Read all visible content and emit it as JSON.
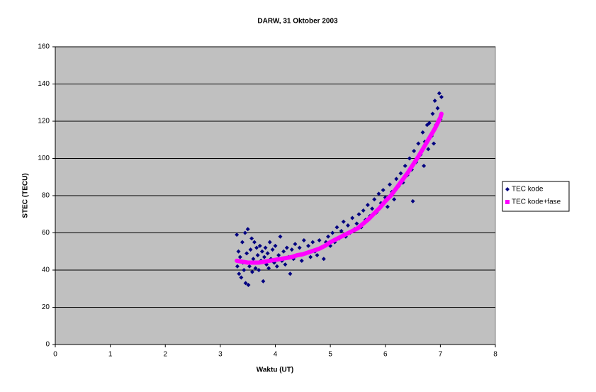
{
  "chart_data": {
    "type": "scatter",
    "title": "DARW, 31 Oktober 2003",
    "x_label": "Waktu (UT)",
    "y_label": "STEC (TECU)",
    "xlim": [
      0,
      8
    ],
    "xticks": [
      0,
      1,
      2,
      3,
      4,
      5,
      6,
      7,
      8
    ],
    "ylim": [
      0,
      160
    ],
    "yticks": [
      0,
      20,
      40,
      60,
      80,
      100,
      120,
      140,
      160
    ],
    "grid": true,
    "legend": "right",
    "background": "#c0c0c0",
    "series": [
      {
        "name": "TEC kode",
        "color": "#000080",
        "marker": "diamond",
        "x": [
          3.3,
          3.31,
          3.33,
          3.34,
          3.36,
          3.38,
          3.4,
          3.41,
          3.43,
          3.45,
          3.46,
          3.48,
          3.5,
          3.51,
          3.53,
          3.55,
          3.57,
          3.58,
          3.6,
          3.62,
          3.64,
          3.66,
          3.68,
          3.7,
          3.72,
          3.74,
          3.76,
          3.78,
          3.8,
          3.82,
          3.84,
          3.86,
          3.88,
          3.9,
          3.92,
          3.95,
          3.98,
          4.0,
          4.03,
          4.06,
          4.09,
          4.12,
          4.15,
          4.18,
          4.21,
          4.24,
          4.27,
          4.3,
          4.33,
          4.36,
          4.4,
          4.44,
          4.48,
          4.52,
          4.56,
          4.6,
          4.64,
          4.68,
          4.72,
          4.76,
          4.8,
          4.84,
          4.88,
          4.92,
          4.96,
          5.0,
          5.04,
          5.08,
          5.12,
          5.16,
          5.2,
          5.24,
          5.28,
          5.32,
          5.36,
          5.4,
          5.44,
          5.48,
          5.52,
          5.56,
          5.6,
          5.64,
          5.68,
          5.72,
          5.76,
          5.8,
          5.84,
          5.88,
          5.92,
          5.96,
          6.0,
          6.04,
          6.08,
          6.12,
          6.16,
          6.2,
          6.24,
          6.28,
          6.32,
          6.36,
          6.4,
          6.44,
          6.48,
          6.5,
          6.52,
          6.56,
          6.6,
          6.64,
          6.68,
          6.7,
          6.72,
          6.76,
          6.78,
          6.8,
          6.84,
          6.86,
          6.88,
          6.9,
          6.92,
          6.95,
          6.98,
          7.0,
          7.02
        ],
        "values": [
          59,
          42,
          50,
          38,
          47,
          36,
          55,
          44,
          40,
          60,
          33,
          49,
          62,
          32,
          42,
          51,
          57,
          39,
          46,
          55,
          41,
          52,
          48,
          40,
          53,
          45,
          50,
          34,
          47,
          52,
          43,
          49,
          41,
          55,
          46,
          51,
          44,
          53,
          42,
          48,
          58,
          45,
          50,
          43,
          52,
          47,
          38,
          51,
          46,
          54,
          48,
          52,
          45,
          56,
          49,
          53,
          47,
          55,
          50,
          48,
          56,
          52,
          46,
          55,
          58,
          53,
          60,
          55,
          63,
          57,
          61,
          66,
          58,
          64,
          60,
          68,
          62,
          65,
          70,
          63,
          72,
          67,
          75,
          69,
          73,
          78,
          71,
          81,
          76,
          83,
          79,
          74,
          86,
          82,
          78,
          89,
          85,
          92,
          87,
          96,
          91,
          100,
          94,
          77,
          104,
          98,
          108,
          102,
          114,
          96,
          109,
          118,
          105,
          119,
          112,
          124,
          108,
          131,
          118,
          127,
          135,
          121,
          133
        ]
      },
      {
        "name": "TEC kode+fase",
        "color": "#ff00ff",
        "marker": "line",
        "x": [
          3.3,
          3.4,
          3.5,
          3.6,
          3.7,
          3.8,
          3.9,
          4.0,
          4.1,
          4.2,
          4.3,
          4.4,
          4.5,
          4.6,
          4.7,
          4.8,
          4.9,
          5.0,
          5.1,
          5.2,
          5.3,
          5.4,
          5.5,
          5.6,
          5.7,
          5.8,
          5.9,
          6.0,
          6.1,
          6.2,
          6.3,
          6.4,
          6.5,
          6.6,
          6.7,
          6.8,
          6.9,
          7.0,
          7.02
        ],
        "values": [
          45,
          44.5,
          44,
          44,
          44,
          44.5,
          45,
          45.5,
          46,
          46.5,
          47,
          48,
          48.5,
          49.5,
          50.5,
          51.5,
          53,
          55,
          56.5,
          58,
          59.5,
          61,
          62.5,
          65,
          67.5,
          70.5,
          73.5,
          77,
          80,
          84,
          88,
          92,
          96.5,
          101,
          106,
          111,
          116,
          122,
          124
        ]
      }
    ]
  }
}
